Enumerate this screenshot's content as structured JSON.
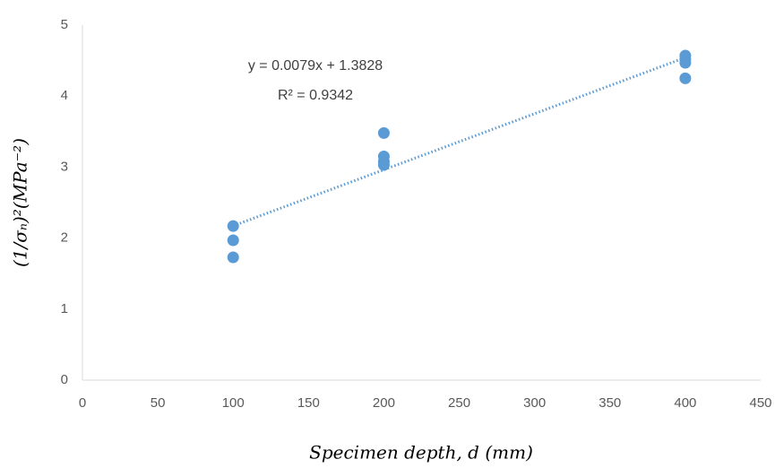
{
  "chart_data": {
    "type": "scatter",
    "x": [
      100,
      100,
      100,
      200,
      200,
      200,
      200,
      400,
      400,
      400,
      400
    ],
    "values": [
      2.17,
      1.97,
      1.73,
      3.48,
      3.15,
      3.08,
      3.03,
      4.57,
      4.52,
      4.47,
      4.25
    ],
    "color": "#5b9bd5",
    "trendline": {
      "x": [
        100,
        400
      ],
      "y": [
        2.1728,
        4.5428
      ],
      "color": "#5b9bd5",
      "equation": "y = 0.0079x + 1.3828",
      "r_squared": "R² = 0.9342"
    },
    "xlabel": "Specimen depth, d (mm)",
    "ylabel": "(1/σₙ)²(MPa⁻²)",
    "xlim": [
      0,
      450
    ],
    "xticks": [
      0,
      50,
      100,
      150,
      200,
      250,
      300,
      350,
      400,
      450
    ],
    "ylim": [
      0,
      5
    ],
    "yticks": [
      0,
      1,
      2,
      3,
      4,
      5
    ],
    "grid": false
  }
}
